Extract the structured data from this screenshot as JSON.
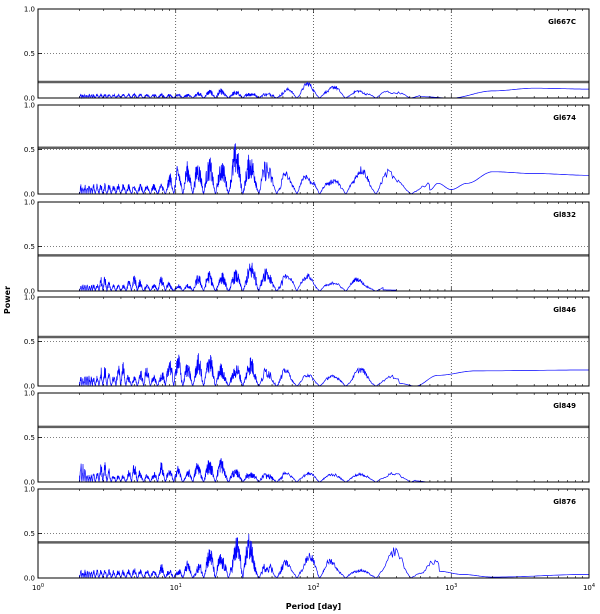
{
  "chart_data": {
    "type": "line",
    "xlabel": "Period [day]",
    "ylabel": "Power",
    "xscale": "log",
    "xlim": [
      1,
      10000
    ],
    "ylim": [
      0,
      1.0
    ],
    "x_ticks": [
      1,
      10,
      100,
      1000,
      10000
    ],
    "x_tick_labels": [
      {
        "base": "10",
        "exp": "0"
      },
      {
        "base": "10",
        "exp": "1"
      },
      {
        "base": "10",
        "exp": "2"
      },
      {
        "base": "10",
        "exp": "3"
      },
      {
        "base": "10",
        "exp": "4"
      }
    ],
    "y_ticks": [
      0.0,
      0.5,
      1.0
    ],
    "y_tick_labels": [
      "0.0",
      "0.5",
      "1.0"
    ],
    "grid": true,
    "line_color": "#0000ff",
    "threshold_color": "#606060",
    "period_range": [
      2,
      10000
    ],
    "panels": [
      {
        "name": "Gl667C",
        "threshold": 0.18,
        "noise_level": 0.05,
        "peaks": [
          [
            15,
            0.08
          ],
          [
            18,
            0.1
          ],
          [
            20,
            0.12
          ],
          [
            25,
            0.09
          ],
          [
            30,
            0.1
          ],
          [
            40,
            0.09
          ],
          [
            55,
            0.1
          ],
          [
            70,
            0.13
          ],
          [
            90,
            0.19
          ],
          [
            110,
            0.15
          ],
          [
            150,
            0.16
          ],
          [
            200,
            0.1
          ],
          [
            300,
            0.13
          ],
          [
            450,
            0.09
          ],
          [
            600,
            0.05
          ]
        ],
        "tail": [
          [
            1000,
            0.0
          ],
          [
            2000,
            0.08
          ],
          [
            4000,
            0.11
          ],
          [
            10000,
            0.1
          ]
        ]
      },
      {
        "name": "Gl674",
        "threshold": 0.52,
        "noise_level": 0.12,
        "peaks": [
          [
            10,
            0.35
          ],
          [
            12,
            0.38
          ],
          [
            14,
            0.4
          ],
          [
            16,
            0.45
          ],
          [
            18,
            0.43
          ],
          [
            20,
            0.38
          ],
          [
            22,
            0.4
          ],
          [
            25,
            0.48
          ],
          [
            28,
            0.6
          ],
          [
            33,
            0.5
          ],
          [
            37,
            0.45
          ],
          [
            42,
            0.48
          ],
          [
            50,
            0.35
          ],
          [
            60,
            0.28
          ],
          [
            80,
            0.3
          ],
          [
            110,
            0.25
          ],
          [
            150,
            0.2
          ],
          [
            180,
            0.27
          ],
          [
            230,
            0.33
          ],
          [
            320,
            0.35
          ],
          [
            450,
            0.2
          ],
          [
            700,
            0.15
          ]
        ],
        "tail": [
          [
            800,
            0.12
          ],
          [
            1000,
            0.05
          ],
          [
            1300,
            0.12
          ],
          [
            2000,
            0.25
          ],
          [
            4000,
            0.23
          ],
          [
            10000,
            0.21
          ]
        ]
      },
      {
        "name": "Gl832",
        "threshold": 0.4,
        "noise_level": 0.08,
        "peaks": [
          [
            3,
            0.18
          ],
          [
            5,
            0.2
          ],
          [
            8,
            0.17
          ],
          [
            15,
            0.2
          ],
          [
            17,
            0.24
          ],
          [
            22,
            0.22
          ],
          [
            28,
            0.25
          ],
          [
            35,
            0.33
          ],
          [
            38,
            0.39
          ],
          [
            42,
            0.37
          ],
          [
            48,
            0.25
          ],
          [
            60,
            0.2
          ],
          [
            75,
            0.25
          ],
          [
            90,
            0.2
          ],
          [
            110,
            0.14
          ],
          [
            150,
            0.12
          ],
          [
            190,
            0.19
          ],
          [
            260,
            0.08
          ],
          [
            320,
            0.04
          ]
        ],
        "tail": [
          [
            400,
            0.01
          ]
        ]
      },
      {
        "name": "Gl846",
        "threshold": 0.55,
        "noise_level": 0.12,
        "peaks": [
          [
            3,
            0.25
          ],
          [
            4,
            0.3
          ],
          [
            6,
            0.25
          ],
          [
            9,
            0.35
          ],
          [
            10,
            0.42
          ],
          [
            12,
            0.3
          ],
          [
            15,
            0.38
          ],
          [
            18,
            0.41
          ],
          [
            20,
            0.3
          ],
          [
            25,
            0.22
          ],
          [
            30,
            0.32
          ],
          [
            35,
            0.35
          ],
          [
            45,
            0.25
          ],
          [
            60,
            0.22
          ],
          [
            90,
            0.15
          ],
          [
            130,
            0.13
          ],
          [
            160,
            0.15
          ],
          [
            220,
            0.22
          ],
          [
            300,
            0.12
          ],
          [
            420,
            0.1
          ]
        ],
        "tail": [
          [
            550,
            0.0
          ],
          [
            800,
            0.12
          ],
          [
            1500,
            0.17
          ],
          [
            10000,
            0.18
          ]
        ]
      },
      {
        "name": "Gl849",
        "threshold": 0.62,
        "noise_level": 0.1,
        "peaks": [
          [
            2,
            0.28
          ],
          [
            3,
            0.25
          ],
          [
            5,
            0.23
          ],
          [
            8,
            0.24
          ],
          [
            10,
            0.2
          ],
          [
            14,
            0.25
          ],
          [
            17,
            0.27
          ],
          [
            20,
            0.33
          ],
          [
            24,
            0.2
          ],
          [
            30,
            0.18
          ],
          [
            40,
            0.15
          ],
          [
            60,
            0.13
          ],
          [
            75,
            0.12
          ],
          [
            100,
            0.13
          ],
          [
            150,
            0.1
          ],
          [
            200,
            0.08
          ],
          [
            400,
            0.12
          ],
          [
            550,
            0.04
          ]
        ],
        "tail": [
          [
            700,
            0.0
          ],
          [
            10000,
            0.0
          ]
        ]
      },
      {
        "name": "Gl876",
        "threshold": 0.4,
        "noise_level": 0.1,
        "peaks": [
          [
            5,
            0.12
          ],
          [
            8,
            0.16
          ],
          [
            12,
            0.2
          ],
          [
            17,
            0.35
          ],
          [
            19,
            0.42
          ],
          [
            24,
            0.3
          ],
          [
            28,
            0.3
          ],
          [
            30,
            0.48
          ],
          [
            31,
            0.7
          ],
          [
            35,
            0.3
          ],
          [
            42,
            0.22
          ],
          [
            50,
            0.2
          ],
          [
            60,
            0.22
          ],
          [
            75,
            0.2
          ],
          [
            100,
            0.33
          ],
          [
            125,
            0.25
          ],
          [
            170,
            0.15
          ],
          [
            230,
            0.08
          ],
          [
            330,
            0.2
          ],
          [
            410,
            0.38
          ],
          [
            520,
            0.12
          ],
          [
            820,
            0.25
          ]
        ],
        "tail": [
          [
            1200,
            0.04
          ],
          [
            2000,
            0.01
          ],
          [
            10000,
            0.04
          ]
        ]
      }
    ]
  }
}
